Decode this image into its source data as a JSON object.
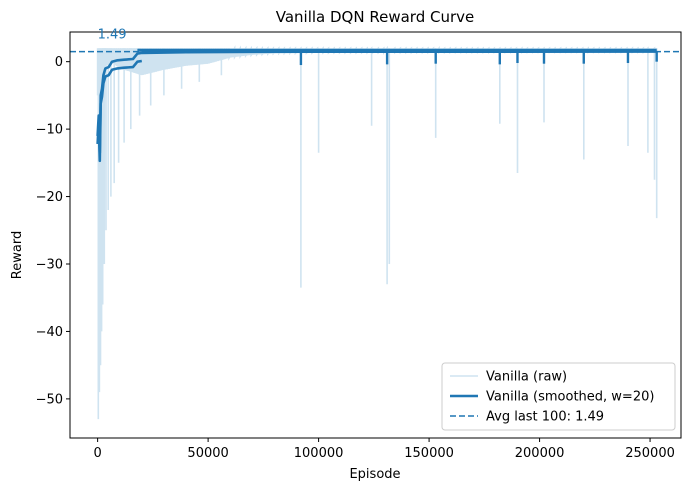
{
  "chart_data": {
    "type": "line",
    "title": "Vanilla DQN Reward Curve",
    "xlabel": "Episode",
    "ylabel": "Reward",
    "xlim": [
      -12500,
      264000
    ],
    "ylim": [
      -55.8,
      4.4
    ],
    "xticks": [
      0,
      50000,
      100000,
      150000,
      200000,
      250000
    ],
    "xtick_labels": [
      "0",
      "50000",
      "100000",
      "150000",
      "200000",
      "250000"
    ],
    "yticks": [
      0,
      -10,
      -20,
      -30,
      -40,
      -50
    ],
    "ytick_labels": [
      "0",
      "−10",
      "−20",
      "−30",
      "−40",
      "−50"
    ],
    "grid": false,
    "legend_position": "lower-right",
    "colors": {
      "raw": "#cfe3f0",
      "smoothed": "#1f77b4",
      "avg": "#1f77b4"
    },
    "series": [
      {
        "name": "Vanilla (raw)",
        "style": "line",
        "baseline": [
          [
            0,
            -5
          ],
          [
            1000,
            -3
          ],
          [
            2000,
            -2
          ],
          [
            4000,
            -0.5
          ],
          [
            6000,
            0
          ],
          [
            10000,
            -1
          ],
          [
            15000,
            -1.5
          ],
          [
            20000,
            -2
          ],
          [
            30000,
            -1.2
          ],
          [
            40000,
            -0.6
          ],
          [
            50000,
            -0.3
          ],
          [
            60000,
            0.6
          ],
          [
            70000,
            1.0
          ],
          [
            80000,
            1.2
          ],
          [
            100000,
            1.3
          ],
          [
            140000,
            1.35
          ],
          [
            200000,
            1.4
          ],
          [
            253000,
            1.4
          ]
        ],
        "upper": 2.0,
        "spikes": [
          [
            300,
            -53
          ],
          [
            800,
            -49
          ],
          [
            1300,
            -45
          ],
          [
            1800,
            -40
          ],
          [
            2300,
            -36
          ],
          [
            3000,
            -30
          ],
          [
            3800,
            -25
          ],
          [
            4800,
            -22
          ],
          [
            6000,
            -20
          ],
          [
            7500,
            -18
          ],
          [
            9500,
            -15
          ],
          [
            12000,
            -12
          ],
          [
            15000,
            -10
          ],
          [
            19000,
            -8
          ],
          [
            24000,
            -6.5
          ],
          [
            30000,
            -5
          ],
          [
            38000,
            -4
          ],
          [
            46000,
            -3
          ],
          [
            56000,
            -2
          ],
          [
            92000,
            -33.5
          ],
          [
            100000,
            -13.5
          ],
          [
            124000,
            -9.5
          ],
          [
            131000,
            -33
          ],
          [
            132000,
            -30
          ],
          [
            153000,
            -11.3
          ],
          [
            182000,
            -9.2
          ],
          [
            190000,
            -16.5
          ],
          [
            202000,
            -9
          ],
          [
            220000,
            -14.5
          ],
          [
            240000,
            -12.5
          ],
          [
            249000,
            -13.5
          ],
          [
            252000,
            -17.5
          ],
          [
            253000,
            -23.2
          ]
        ]
      },
      {
        "name": "Vanilla (smoothed, w=20)",
        "style": "line",
        "points": [
          [
            0,
            -11
          ],
          [
            500,
            -8
          ],
          [
            1000,
            -13.5
          ],
          [
            1400,
            -5
          ],
          [
            2000,
            -4
          ],
          [
            2600,
            -2
          ],
          [
            3500,
            -1
          ],
          [
            5000,
            -0.8
          ],
          [
            6500,
            0
          ],
          [
            9000,
            0.2
          ],
          [
            12000,
            0.3
          ],
          [
            16000,
            0.4
          ],
          [
            18000,
            1.2
          ],
          [
            20000,
            1.3
          ],
          [
            40000,
            1.4
          ],
          [
            80000,
            1.48
          ],
          [
            253000,
            1.49
          ]
        ],
        "dips": [
          [
            92000,
            -0.5
          ],
          [
            131000,
            -0.4
          ],
          [
            153000,
            -0.3
          ],
          [
            182000,
            -0.4
          ],
          [
            190000,
            -0.2
          ],
          [
            202000,
            -0.3
          ],
          [
            220000,
            -0.3
          ],
          [
            240000,
            -0.2
          ]
        ]
      },
      {
        "name": "Avg last 100: 1.49",
        "style": "dashed-hline",
        "value": 1.49
      }
    ],
    "annotations": [
      {
        "text": "1.49",
        "x": 0,
        "y": 1.49
      }
    ]
  }
}
